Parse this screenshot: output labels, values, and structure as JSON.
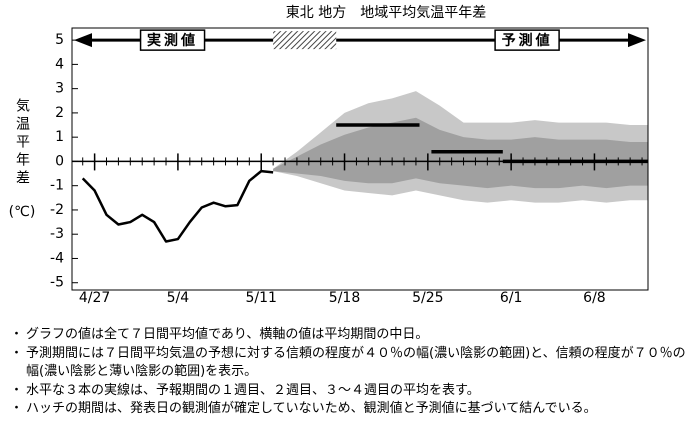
{
  "chart_data": {
    "type": "line",
    "title": "東北 地方　地域平均気温平年差",
    "y_label": "気温平年差",
    "y_unit": "(℃)",
    "annotations": {
      "observed": "実測値",
      "forecast": "予測値"
    },
    "xlim": [
      -1.9,
      46.5
    ],
    "xticks": [
      {
        "value": 0,
        "label": "4/27"
      },
      {
        "value": 7,
        "label": "5/4"
      },
      {
        "value": 14,
        "label": "5/11"
      },
      {
        "value": 21,
        "label": "5/18"
      },
      {
        "value": 28,
        "label": "5/25"
      },
      {
        "value": 35,
        "label": "6/1"
      },
      {
        "value": 42,
        "label": "6/8"
      }
    ],
    "ylim": [
      -5.3,
      5.5
    ],
    "yticks": [
      5,
      4,
      3,
      2,
      1,
      0,
      -1,
      -2,
      -3,
      -4,
      -5
    ],
    "observed": {
      "color": "#000000",
      "x": [
        -1,
        0,
        1,
        2,
        3,
        4,
        5,
        6,
        7,
        8,
        9,
        10,
        11,
        12,
        13,
        14,
        15
      ],
      "values": [
        -0.7,
        -1.2,
        -2.2,
        -2.6,
        -2.5,
        -2.2,
        -2.5,
        -3.3,
        -3.2,
        -2.5,
        -1.9,
        -1.7,
        -1.85,
        -1.8,
        -0.8,
        -0.4,
        -0.45
      ]
    },
    "band70": {
      "color": "#c8c8c8",
      "x": [
        15,
        17,
        19,
        21,
        23,
        25,
        27,
        29,
        31,
        33,
        35,
        37,
        39,
        41,
        43,
        45,
        46.5
      ],
      "upper": [
        -0.3,
        0.4,
        1.2,
        2.0,
        2.4,
        2.6,
        2.9,
        2.3,
        1.6,
        1.6,
        1.6,
        1.7,
        1.6,
        1.6,
        1.6,
        1.5,
        1.5
      ],
      "lower": [
        -0.4,
        -0.6,
        -0.9,
        -1.2,
        -1.3,
        -1.4,
        -1.2,
        -1.4,
        -1.6,
        -1.7,
        -1.6,
        -1.7,
        -1.7,
        -1.6,
        -1.7,
        -1.6,
        -1.6
      ]
    },
    "band40": {
      "color": "#a0a0a0",
      "x": [
        15,
        17,
        19,
        21,
        23,
        25,
        27,
        29,
        31,
        33,
        35,
        37,
        39,
        41,
        43,
        45,
        46.5
      ],
      "upper": [
        -0.3,
        0.2,
        0.7,
        1.1,
        1.4,
        1.6,
        1.8,
        1.3,
        1.0,
        0.9,
        0.9,
        1.0,
        0.9,
        0.9,
        0.9,
        0.8,
        0.8
      ],
      "lower": [
        -0.4,
        -0.5,
        -0.6,
        -0.8,
        -0.9,
        -0.9,
        -0.7,
        -0.9,
        -1.0,
        -1.1,
        -1.0,
        -1.1,
        -1.1,
        -1.0,
        -1.1,
        -1.0,
        -1.0
      ]
    },
    "weekly_means": [
      {
        "x_start": 20.3,
        "x_end": 27.3,
        "value": 1.5
      },
      {
        "x_start": 28.3,
        "x_end": 34.3,
        "value": 0.4
      },
      {
        "x_start": 34.3,
        "x_end": 46.5,
        "value": 0
      }
    ]
  },
  "notes": [
    "グラフの値は全て７日間平均値であり、横軸の値は平均期間の中日。",
    "予測期間には７日間平均気温の予想に対する信頼の程度が４０％の幅(濃い陰影の範囲)と、信頼の程度が７０％の幅(濃い陰影と薄い陰影の範囲)を表示。",
    "水平な３本の実線は、予報期間の１週目、２週目、３～４週目の平均を表す。",
    "ハッチの期間は、発表日の観測値が確定していないため、観測値と予測値に基づいて結んでいる。"
  ]
}
